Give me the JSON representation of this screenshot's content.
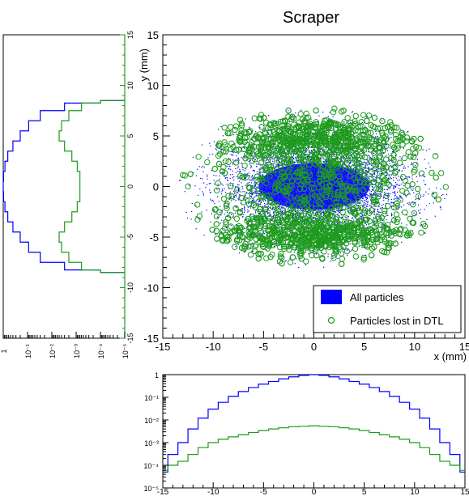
{
  "chart_data": [
    {
      "type": "scatter",
      "title": "Scraper",
      "xlabel": "x (mm)",
      "ylabel": "y (mm)",
      "xlim": [
        -15,
        15
      ],
      "ylim": [
        -15,
        15
      ],
      "xticks": [
        "-15",
        "-10",
        "-5",
        "0",
        "5",
        "10",
        "15"
      ],
      "yticks": [
        "-15",
        "-10",
        "-5",
        "0",
        "5",
        "10",
        "15"
      ],
      "grid": false,
      "legend_position": "bottom-right",
      "series": [
        {
          "name": "All particles",
          "marker": "dot",
          "color": "#0000ff",
          "distribution": {
            "center": [
              0,
              0
            ],
            "x_extent": [
              -13.5,
              13.5
            ],
            "y_extent": [
              -8,
              8
            ],
            "core_x_extent": [
              -5,
              5
            ],
            "core_y_extent": [
              -2,
              2
            ]
          }
        },
        {
          "name": "Particles lost in DTL",
          "marker": "open-circle",
          "color": "#1e9b1e",
          "distribution": {
            "x_extent": [
              -13,
              13
            ],
            "y_extent": [
              -7.5,
              7.5
            ],
            "dense_bands_y": [
              -4.8,
              4.8
            ]
          }
        }
      ]
    },
    {
      "type": "line",
      "orientation": "horizontal",
      "scale": "log",
      "xticks": [
        "1",
        "10⁻¹",
        "10⁻²",
        "10⁻³",
        "10⁻⁴",
        "10⁻⁵"
      ],
      "ylim": [
        -15,
        15
      ],
      "yticks": [
        "-15",
        "-10",
        "-5",
        "0",
        "5",
        "10",
        "15"
      ],
      "series": [
        {
          "name": "All particles",
          "color": "#0000ff",
          "y": [
            -8.5,
            -8,
            -7,
            -6,
            -5,
            -4,
            -3,
            -2,
            -1,
            0,
            1,
            2,
            3,
            4,
            5,
            6,
            7,
            8,
            8.5
          ],
          "values": [
            0.0001,
            0.003,
            0.03,
            0.09,
            0.2,
            0.4,
            0.65,
            0.85,
            0.97,
            1,
            0.97,
            0.85,
            0.65,
            0.4,
            0.2,
            0.09,
            0.03,
            0.003,
            0.0001
          ]
        },
        {
          "name": "Particles lost in DTL",
          "color": "#1e9b1e",
          "y": [
            -8.5,
            -8,
            -7,
            -6,
            -5,
            -4,
            -3,
            -2,
            -1,
            0,
            1,
            2,
            3,
            4,
            5,
            6,
            7,
            8,
            8.5
          ],
          "values": [
            0.0001,
            0.0006,
            0.002,
            0.004,
            0.005,
            0.003,
            0.0015,
            0.0009,
            0.0007,
            0.0007,
            0.0007,
            0.0009,
            0.0015,
            0.003,
            0.005,
            0.004,
            0.002,
            0.0006,
            0.0001
          ]
        }
      ]
    },
    {
      "type": "line",
      "scale": "log",
      "xlim": [
        -15,
        15
      ],
      "xticks": [
        "-15",
        "-10",
        "-5",
        "0",
        "5",
        "10",
        "15"
      ],
      "yticks": [
        "1",
        "10⁻¹",
        "10⁻²",
        "10⁻³",
        "10⁻⁴",
        "10⁻⁵"
      ],
      "series": [
        {
          "name": "All particles",
          "color": "#0000ff",
          "x": [
            -15,
            -14,
            -13,
            -12,
            -11,
            -10,
            -9,
            -8,
            -7,
            -6,
            -5,
            -4,
            -3,
            -2,
            -1,
            0,
            1,
            2,
            3,
            4,
            5,
            6,
            7,
            8,
            9,
            10,
            11,
            12,
            13,
            14,
            15
          ],
          "values": [
            5e-05,
            0.0003,
            0.001,
            0.004,
            0.012,
            0.03,
            0.06,
            0.11,
            0.18,
            0.27,
            0.38,
            0.5,
            0.65,
            0.8,
            0.93,
            1,
            0.93,
            0.8,
            0.65,
            0.5,
            0.38,
            0.27,
            0.18,
            0.11,
            0.06,
            0.03,
            0.012,
            0.004,
            0.001,
            0.0003,
            5e-05
          ]
        },
        {
          "name": "Particles lost in DTL",
          "color": "#1e9b1e",
          "x": [
            -15,
            -14,
            -13,
            -12,
            -11,
            -10,
            -9,
            -8,
            -7,
            -6,
            -5,
            -4,
            -3,
            -2,
            -1,
            0,
            1,
            2,
            3,
            4,
            5,
            6,
            7,
            8,
            9,
            10,
            11,
            12,
            13,
            14,
            15
          ],
          "values": [
            6e-05,
            0.0001,
            0.00015,
            0.0003,
            0.0006,
            0.001,
            0.0014,
            0.0018,
            0.0022,
            0.0028,
            0.0034,
            0.004,
            0.0045,
            0.005,
            0.0052,
            0.0055,
            0.0052,
            0.005,
            0.0045,
            0.004,
            0.0034,
            0.0028,
            0.0022,
            0.0018,
            0.0014,
            0.001,
            0.0006,
            0.0003,
            0.00015,
            0.0001,
            6e-05
          ]
        }
      ]
    }
  ]
}
